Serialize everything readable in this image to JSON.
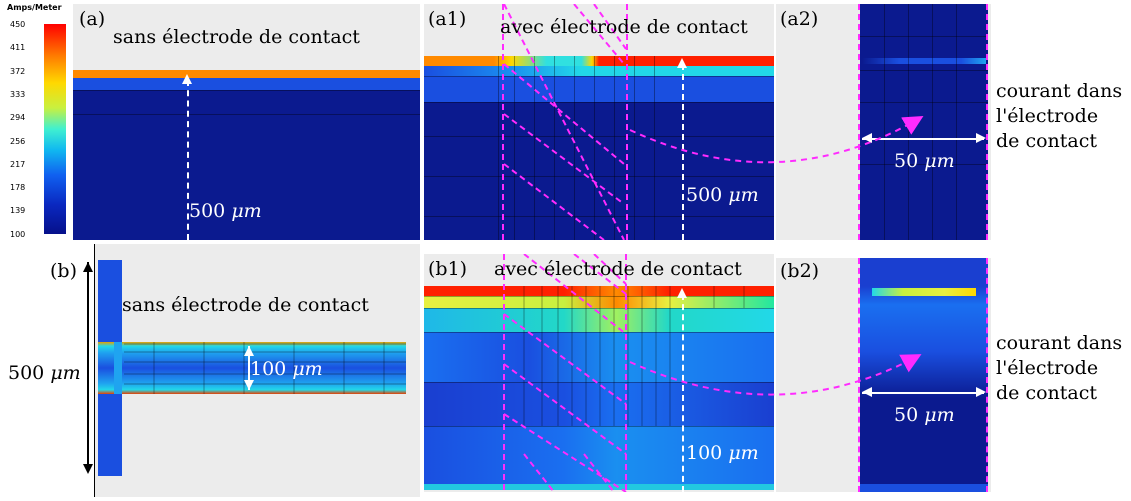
{
  "colorbar": {
    "unit": "Amps/Meter",
    "ticks": [
      "450",
      "411",
      "372",
      "333",
      "294",
      "256",
      "217",
      "178",
      "139",
      "100"
    ]
  },
  "panels": {
    "a": {
      "tag": "(a)",
      "title": "sans électrode de contact",
      "dim": "500"
    },
    "a1": {
      "tag": "(a1)",
      "title": "avec électrode de contact",
      "dim": "500"
    },
    "a2": {
      "tag": "(a2)",
      "dim": "50"
    },
    "b": {
      "tag": "(b)",
      "title": "sans électrode de contact",
      "dim_outer": "500",
      "dim_inner": "100"
    },
    "b1": {
      "tag": "(b1)",
      "title": "avec électrode de contact",
      "dim": "100"
    },
    "b2": {
      "tag": "(b2)",
      "dim": "50"
    }
  },
  "annotation_top": [
    "courant dans",
    "l'électrode",
    "de contact"
  ],
  "annotation_bottom": [
    "courant dans",
    "l'électrode",
    "de contact"
  ],
  "unit_mu": "μm",
  "colors": {
    "navy": "#0b1a8f",
    "blue": "#1a4fe0",
    "light_blue": "#1fa4f0",
    "cyan": "#22d8e8",
    "yellow": "#e8f040",
    "orange": "#ff8a00",
    "red": "#ff2000",
    "magenta": "#ff2bff"
  }
}
